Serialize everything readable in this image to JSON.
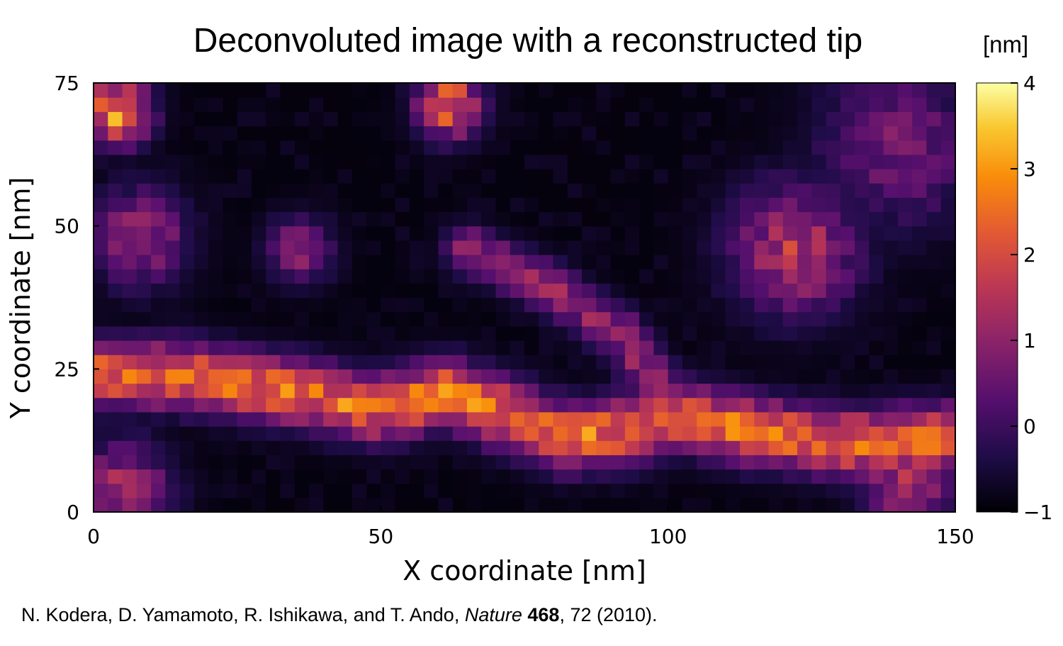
{
  "chart_data": {
    "type": "heatmap",
    "title": "Deconvoluted image with a reconstructed tip",
    "xlabel": "X coordinate [nm]",
    "ylabel": "Y coordinate [nm]",
    "xlim": [
      0,
      150
    ],
    "ylim": [
      0,
      75
    ],
    "x_ticks": [
      "0",
      "50",
      "100",
      "150"
    ],
    "y_ticks": [
      "0",
      "25",
      "50",
      "75"
    ],
    "colorbar": {
      "label": "[nm]",
      "range": [
        -1,
        4
      ],
      "ticks": [
        "−1",
        "0",
        "1",
        "2",
        "3",
        "4"
      ],
      "colormap": "inferno"
    },
    "grid": false,
    "resolution": [
      60,
      30
    ],
    "features": {
      "background": -0.9,
      "main_strand": {
        "points": [
          [
            0,
            24
          ],
          [
            15,
            24
          ],
          [
            35,
            21
          ],
          [
            50,
            18
          ],
          [
            62,
            21
          ],
          [
            72,
            17
          ],
          [
            82,
            13
          ],
          [
            92,
            14
          ],
          [
            102,
            17
          ],
          [
            115,
            14
          ],
          [
            132,
            12
          ],
          [
            150,
            13
          ]
        ],
        "height": 2.4,
        "width": 4
      },
      "branch": {
        "points": [
          [
            65,
            46
          ],
          [
            80,
            39
          ],
          [
            92,
            31
          ],
          [
            98,
            22
          ],
          [
            102,
            17
          ]
        ],
        "height": 1.0,
        "width": 3
      },
      "blobs": [
        {
          "x": 4,
          "y": 70,
          "height": 3.0,
          "radius": 4
        },
        {
          "x": 8,
          "y": 48,
          "height": 1.1,
          "radius": 6
        },
        {
          "x": 36,
          "y": 46,
          "height": 0.9,
          "radius": 4
        },
        {
          "x": 62,
          "y": 71,
          "height": 2.4,
          "radius": 4
        },
        {
          "x": 122,
          "y": 46,
          "height": 1.4,
          "radius": 8
        },
        {
          "x": 140,
          "y": 64,
          "height": 0.6,
          "radius": 10
        },
        {
          "x": 5,
          "y": 4,
          "height": 1.2,
          "radius": 6
        },
        {
          "x": 142,
          "y": 6,
          "height": 1.4,
          "radius": 6
        }
      ]
    }
  },
  "citation": {
    "authors": "N. Kodera, D. Yamamoto, R. Ishikawa, and T. Ando, ",
    "journal": "Nature",
    "volume": "468",
    "rest": ", 72 (2010)."
  }
}
